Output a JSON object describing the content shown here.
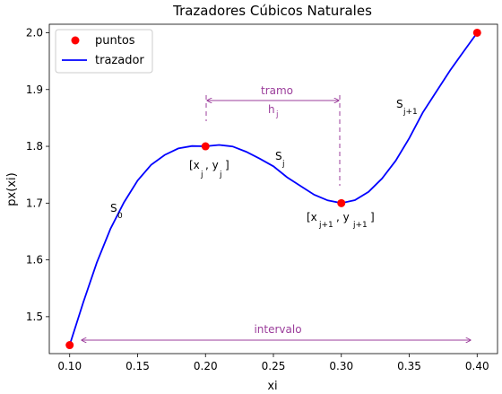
{
  "chart_data": {
    "type": "line",
    "title": "Trazadores Cúbicos Naturales",
    "xlabel": "xi",
    "ylabel": "px(xi)",
    "xlim": [
      0.085,
      0.415
    ],
    "ylim": [
      1.435,
      2.015
    ],
    "xticks": [
      "0.10",
      "0.15",
      "0.20",
      "0.25",
      "0.30",
      "0.35",
      "0.40"
    ],
    "yticks": [
      "1.5",
      "1.6",
      "1.7",
      "1.8",
      "1.9",
      "2.0"
    ],
    "grid": false,
    "legend_placement": "top-left",
    "points": {
      "name": "puntos",
      "color": "#ff0000",
      "x": [
        0.1,
        0.2,
        0.3,
        0.4
      ],
      "y": [
        1.45,
        1.8,
        1.7,
        2.0
      ]
    },
    "spline": {
      "name": "trazador",
      "color": "#0000ff",
      "x": [
        0.1,
        0.11,
        0.12,
        0.13,
        0.14,
        0.15,
        0.16,
        0.17,
        0.18,
        0.19,
        0.2,
        0.21,
        0.22,
        0.23,
        0.24,
        0.25,
        0.26,
        0.27,
        0.28,
        0.29,
        0.3,
        0.31,
        0.32,
        0.33,
        0.34,
        0.35,
        0.36,
        0.37,
        0.38,
        0.39,
        0.4
      ],
      "y": [
        1.45,
        1.5253,
        1.5953,
        1.6547,
        1.7013,
        1.7399,
        1.7673,
        1.7849,
        1.7962,
        1.8005,
        1.8,
        1.8025,
        1.7998,
        1.7904,
        1.7782,
        1.7649,
        1.7456,
        1.7302,
        1.7148,
        1.7047,
        1.7,
        1.7052,
        1.7198,
        1.7434,
        1.7746,
        1.8142,
        1.8596,
        1.8965,
        1.9334,
        1.9668,
        2.0
      ]
    },
    "annotations": {
      "s0": {
        "base": "S",
        "sub": "0"
      },
      "sj": {
        "base": "S",
        "sub": "j"
      },
      "sj1": {
        "base": "S",
        "sub": "j+1"
      },
      "pj": {
        "open": "[x",
        "sub1": "j",
        "mid": ", y",
        "sub2": "j",
        "close": "]"
      },
      "pj1": {
        "open": "[x",
        "sub1": "j+1",
        "mid": ", y",
        "sub2": "j+1",
        "close": "]"
      },
      "tramo": "tramo",
      "hj": {
        "base": "h",
        "sub": "j"
      },
      "intervalo": "intervalo"
    },
    "annotation_color": "#9b3d9b"
  }
}
